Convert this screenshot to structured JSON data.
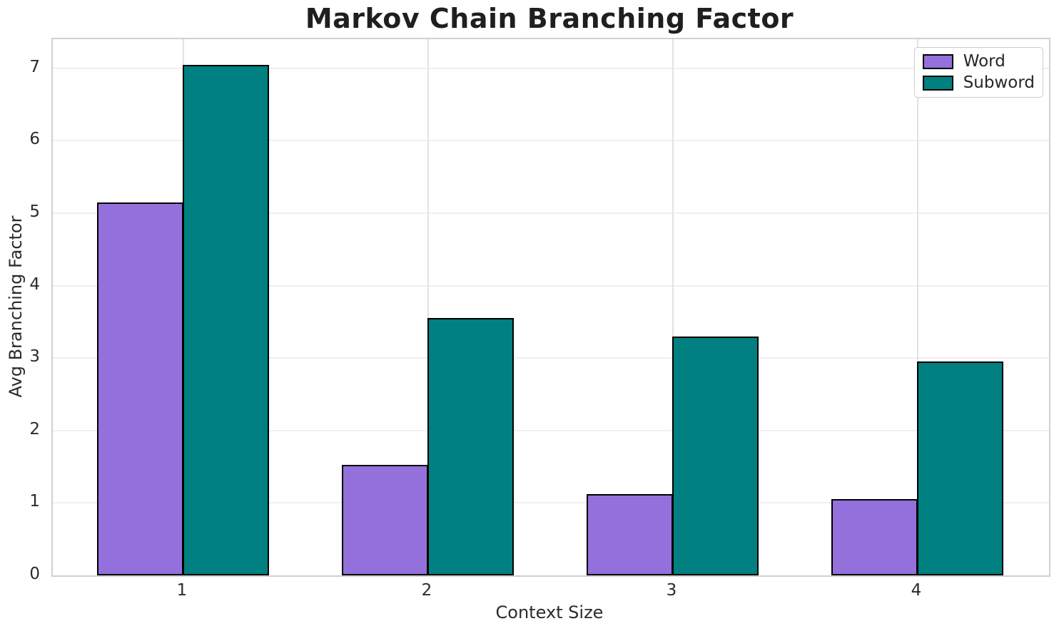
{
  "chart_data": {
    "type": "bar",
    "title": "Markov Chain Branching Factor",
    "xlabel": "Context Size",
    "ylabel": "Avg Branching Factor",
    "categories": [
      "1",
      "2",
      "3",
      "4"
    ],
    "series": [
      {
        "name": "Word",
        "color": "#9370DB",
        "values": [
          5.15,
          1.53,
          1.12,
          1.05
        ]
      },
      {
        "name": "Subword",
        "color": "#008080",
        "values": [
          7.05,
          3.55,
          3.3,
          2.95
        ]
      }
    ],
    "ylim": [
      0,
      7.4
    ],
    "yticks": [
      0,
      1,
      2,
      3,
      4,
      5,
      6,
      7
    ],
    "grid": true,
    "bar_edge_color": "#000000",
    "legend_position": "upper right",
    "colors": {
      "grid_horizontal": "#f0f0f0",
      "grid_vertical": "#e2e2e2",
      "spine": "#d0d0d0",
      "text": "#2b2b2b",
      "title_text": "#1f1f1f"
    }
  }
}
